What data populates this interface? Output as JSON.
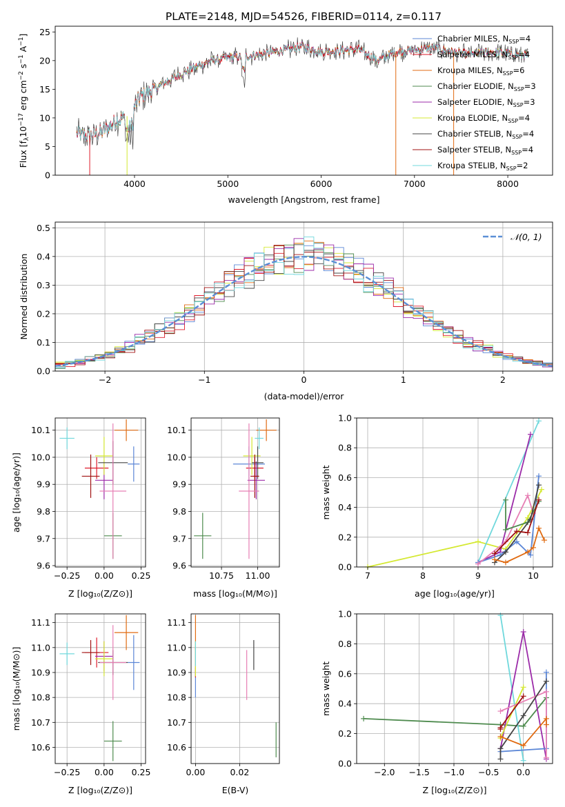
{
  "title": "PLATE=2148, MJD=54526, FIBERID=0114, z=0.117",
  "colors": {
    "chabrier_miles": "#5b86d6",
    "salpeter_miles": "#de1a2a",
    "kroupa_miles": "#e06a10",
    "chabrier_elodie": "#4d8a4d",
    "salpeter_elodie": "#9b2aa8",
    "kroupa_elodie": "#d4e830",
    "chabrier_stelib": "#444444",
    "salpeter_stelib": "#a01010",
    "kroupa_stelib": "#70d8dc",
    "gaussian": "#5b8fd6"
  },
  "chart_data": [
    {
      "id": "spectrum",
      "type": "line",
      "xlabel": "wavelength [Angstrom, rest frame]",
      "ylabel": "Flux [f",
      "xlim": [
        3150,
        8480
      ],
      "ylim": [
        0,
        26
      ],
      "xticks": [
        4000,
        5000,
        6000,
        7000,
        8000
      ],
      "yticks": [
        0,
        5,
        10,
        15,
        20,
        25
      ],
      "grid": false,
      "legend_position": "top-right",
      "continuum": {
        "x": [
          3380,
          3500,
          3650,
          3800,
          3950,
          4050,
          4200,
          4400,
          4600,
          4800,
          5000,
          5200,
          5400,
          5600,
          5800,
          6000,
          6200,
          6400,
          6600,
          6800,
          7000,
          7200,
          7400,
          7600,
          7800,
          8000,
          8220
        ],
        "y": [
          7.2,
          6.8,
          7.5,
          9.5,
          10.5,
          13.5,
          15.0,
          16.8,
          18.5,
          19.8,
          20.5,
          20.7,
          21.2,
          21.8,
          22.5,
          21.5,
          21.7,
          22.0,
          20.0,
          21.5,
          21.8,
          22.3,
          21.5,
          21.0,
          21.5,
          21.3,
          20.8
        ]
      },
      "series": [
        {
          "name": "Chabrier MILES, N",
          "nssp": "=4",
          "color": "chabrier_miles"
        },
        {
          "name": "Salpeter MILES, N",
          "nssp": "=4",
          "color": "salpeter_miles"
        },
        {
          "name": "Kroupa MILES, N",
          "nssp": "=6",
          "color": "kroupa_miles"
        },
        {
          "name": "Chabrier ELODIE, N",
          "nssp": "=3",
          "color": "chabrier_elodie"
        },
        {
          "name": "Salpeter ELODIE, N",
          "nssp": "=3",
          "color": "salpeter_elodie"
        },
        {
          "name": "Kroupa ELODIE, N",
          "nssp": "=4",
          "color": "kroupa_elodie"
        },
        {
          "name": "Chabrier STELIB, N",
          "nssp": "=4",
          "color": "chabrier_stelib"
        },
        {
          "name": "Salpeter STELIB, N",
          "nssp": "=4",
          "color": "salpeter_stelib"
        },
        {
          "name": "Kroupa STELIB, N",
          "nssp": "=2",
          "color": "kroupa_stelib"
        }
      ],
      "drops": [
        {
          "x": 3520,
          "color": "salpeter_miles"
        },
        {
          "x": 3920,
          "color": "kroupa_elodie"
        },
        {
          "x": 6800,
          "color": "kroupa_miles"
        },
        {
          "x": 7420,
          "color": "kroupa_miles"
        }
      ]
    },
    {
      "id": "residuals",
      "type": "histogram",
      "xlabel": "(data-model)/error",
      "ylabel": "Normed distribution",
      "xlim": [
        -2.5,
        2.5
      ],
      "ylim": [
        0,
        0.52
      ],
      "xticks": [
        -2,
        -1,
        0,
        1,
        2
      ],
      "yticks": [
        0.0,
        0.1,
        0.2,
        0.3,
        0.4,
        0.5
      ],
      "grid": true,
      "legend_position": "top-right",
      "legend": "𝒩(0, 1)",
      "bin_edges_from": -2.5,
      "bin_width": 0.1
    },
    {
      "id": "age_vs_Z",
      "type": "errorbar",
      "xlabel": "Z [log₁₀(Z/Z⊙)]",
      "ylabel": "age  [log₁₀(age/yr)]",
      "xlim": [
        -0.33,
        0.28
      ],
      "ylim": [
        9.595,
        10.145
      ],
      "xticks": [
        -0.25,
        0.0,
        0.25
      ],
      "yticks": [
        9.6,
        9.7,
        9.8,
        9.9,
        10.0,
        10.1
      ],
      "grid": true,
      "points": [
        {
          "x": 0.2,
          "y": 9.975,
          "xerr": 0.04,
          "yerr": 0.065,
          "color": "chabrier_miles"
        },
        {
          "x": -0.05,
          "y": 9.96,
          "xerr": 0.08,
          "yerr": 0.04,
          "color": "salpeter_miles"
        },
        {
          "x": 0.15,
          "y": 10.1,
          "xerr": 0.08,
          "yerr": 0.04,
          "color": "kroupa_miles"
        },
        {
          "x": 0.06,
          "y": 9.71,
          "xerr": 0.06,
          "yerr": 0.085,
          "color": "chabrier_elodie"
        },
        {
          "x": 0.0,
          "y": 9.915,
          "xerr": 0.06,
          "yerr": 0.07,
          "color": "salpeter_elodie"
        },
        {
          "x": 0.0,
          "y": 10.005,
          "xerr": 0.06,
          "yerr": 0.07,
          "color": "kroupa_elodie"
        },
        {
          "x": 0.06,
          "y": 9.98,
          "xerr": 0.1,
          "yerr": 0.08,
          "color": "chabrier_stelib"
        },
        {
          "x": -0.09,
          "y": 9.93,
          "xerr": 0.06,
          "yerr": 0.08,
          "color": "salpeter_stelib"
        },
        {
          "x": -0.25,
          "y": 10.07,
          "xerr": 0.05,
          "yerr": 0.04,
          "color": "kroupa_stelib"
        },
        {
          "x": 0.06,
          "y": 9.875,
          "xerr": 0.09,
          "yerr": 0.25,
          "color": "pink"
        }
      ]
    },
    {
      "id": "age_vs_mass",
      "type": "errorbar",
      "xlabel": "mass [log₁₀(M/M⊙)]",
      "ylabel": "",
      "xlim": [
        10.54,
        11.15
      ],
      "ylim": [
        9.595,
        10.145
      ],
      "xticks": [
        10.75,
        11.0
      ],
      "yticks": [
        9.6,
        9.7,
        9.8,
        9.9,
        10.0,
        10.1
      ],
      "grid": true,
      "points": [
        {
          "x": 10.94,
          "y": 9.975,
          "xerr": 0.11,
          "yerr": 0.065,
          "color": "chabrier_miles"
        },
        {
          "x": 10.98,
          "y": 9.96,
          "xerr": 0.06,
          "yerr": 0.04,
          "color": "salpeter_miles"
        },
        {
          "x": 11.06,
          "y": 10.1,
          "xerr": 0.07,
          "yerr": 0.04,
          "color": "kroupa_miles"
        },
        {
          "x": 10.62,
          "y": 9.71,
          "xerr": 0.06,
          "yerr": 0.085,
          "color": "chabrier_elodie"
        },
        {
          "x": 10.99,
          "y": 9.915,
          "xerr": 0.06,
          "yerr": 0.07,
          "color": "salpeter_elodie"
        },
        {
          "x": 10.96,
          "y": 10.005,
          "xerr": 0.06,
          "yerr": 0.07,
          "color": "kroupa_elodie"
        },
        {
          "x": 11.0,
          "y": 9.98,
          "xerr": 0.04,
          "yerr": 0.06,
          "color": "chabrier_stelib"
        },
        {
          "x": 10.98,
          "y": 9.93,
          "xerr": 0.03,
          "yerr": 0.08,
          "color": "salpeter_stelib"
        },
        {
          "x": 11.01,
          "y": 10.07,
          "xerr": 0.03,
          "yerr": 0.04,
          "color": "kroupa_stelib"
        },
        {
          "x": 10.94,
          "y": 9.875,
          "xerr": 0.07,
          "yerr": 0.25,
          "color": "pink"
        }
      ]
    },
    {
      "id": "massweight_vs_age",
      "type": "line",
      "xlabel": "age  [log₁₀(age/yr)]",
      "ylabel": "mass weight",
      "xlim": [
        6.8,
        10.35
      ],
      "ylim": [
        0,
        1
      ],
      "xticks": [
        7,
        8,
        9,
        10
      ],
      "yticks": [
        0.0,
        0.2,
        0.4,
        0.6,
        0.8,
        1.0
      ],
      "grid": true,
      "series": [
        {
          "color": "kroupa_elodie",
          "x": [
            7.0,
            9.0,
            9.5,
            9.9,
            10.15
          ],
          "y": [
            0.0,
            0.17,
            0.12,
            0.33,
            0.52
          ]
        },
        {
          "color": "kroupa_stelib",
          "x": [
            9.0,
            10.1
          ],
          "y": [
            0.03,
            0.98
          ]
        },
        {
          "color": "salpeter_elodie",
          "x": [
            9.0,
            9.4,
            9.95
          ],
          "y": [
            0.03,
            0.1,
            0.89
          ]
        },
        {
          "color": "chabrier_miles",
          "x": [
            9.0,
            9.4,
            9.7,
            9.95,
            10.1
          ],
          "y": [
            0.03,
            0.08,
            0.17,
            0.08,
            0.61
          ]
        },
        {
          "color": "pink",
          "x": [
            9.0,
            9.5,
            9.9,
            10.0
          ],
          "y": [
            0.02,
            0.17,
            0.48,
            0.36
          ]
        },
        {
          "color": "chabrier_elodie",
          "x": [
            9.5,
            9.5,
            9.9,
            10.1
          ],
          "y": [
            0.45,
            0.25,
            0.3,
            0.44
          ]
        },
        {
          "color": "chabrier_stelib",
          "x": [
            9.3,
            9.5,
            9.95,
            10.1
          ],
          "y": [
            0.03,
            0.1,
            0.32,
            0.55
          ]
        },
        {
          "color": "salpeter_stelib",
          "x": [
            9.3,
            9.7,
            9.9,
            10.1
          ],
          "y": [
            0.09,
            0.24,
            0.23,
            0.45
          ]
        },
        {
          "color": "kroupa_miles",
          "x": [
            9.3,
            9.5,
            9.9,
            10.0,
            10.1,
            10.2
          ],
          "y": [
            0.05,
            0.03,
            0.1,
            0.13,
            0.26,
            0.18
          ]
        }
      ]
    },
    {
      "id": "mass_vs_Z",
      "type": "errorbar",
      "xlabel": "Z [log₁₀(Z/Z⊙)]",
      "ylabel": "mass [log₁₀(M/M⊙)]",
      "xlim": [
        -0.33,
        0.28
      ],
      "ylim": [
        10.535,
        11.135
      ],
      "xticks": [
        -0.25,
        0.0,
        0.25
      ],
      "yticks": [
        10.6,
        10.7,
        10.8,
        10.9,
        11.0,
        11.1
      ],
      "grid": true,
      "points": [
        {
          "x": 0.2,
          "y": 10.94,
          "xerr": 0.04,
          "yerr": 0.11,
          "color": "chabrier_miles"
        },
        {
          "x": -0.05,
          "y": 10.98,
          "xerr": 0.08,
          "yerr": 0.06,
          "color": "salpeter_miles"
        },
        {
          "x": 0.15,
          "y": 11.06,
          "xerr": 0.08,
          "yerr": 0.07,
          "color": "kroupa_miles"
        },
        {
          "x": 0.06,
          "y": 10.625,
          "xerr": 0.06,
          "yerr": 0.08,
          "color": "chabrier_elodie"
        },
        {
          "x": 0.0,
          "y": 10.965,
          "xerr": 0.06,
          "yerr": 0.06,
          "color": "salpeter_elodie"
        },
        {
          "x": 0.0,
          "y": 10.955,
          "xerr": 0.06,
          "yerr": 0.07,
          "color": "kroupa_elodie"
        },
        {
          "x": 0.06,
          "y": 10.94,
          "xerr": 0.1,
          "yerr": 0.05,
          "color": "chabrier_stelib"
        },
        {
          "x": -0.09,
          "y": 10.98,
          "xerr": 0.06,
          "yerr": 0.05,
          "color": "salpeter_stelib"
        },
        {
          "x": -0.25,
          "y": 10.975,
          "xerr": 0.05,
          "yerr": 0.045,
          "color": "kroupa_stelib"
        },
        {
          "x": 0.06,
          "y": 10.94,
          "xerr": 0.09,
          "yerr": 0.15,
          "color": "pink"
        }
      ]
    },
    {
      "id": "mass_vs_ebv",
      "type": "errorbar",
      "xlabel": "E(B-V)",
      "ylabel": "",
      "xlim": [
        -0.002,
        0.038
      ],
      "ylim": [
        10.535,
        11.135
      ],
      "xticks": [
        0.0,
        0.02
      ],
      "xtick_labels": [
        "0.00",
        "0.02"
      ],
      "yticks": [
        10.6,
        10.7,
        10.8,
        10.9,
        11.0,
        11.1
      ],
      "grid": true,
      "points": [
        {
          "x": 0.0,
          "y": 10.86,
          "xerr": 0,
          "yerr": 0.06,
          "color": "chabrier_miles"
        },
        {
          "x": 0.0,
          "y": 10.94,
          "xerr": 0,
          "yerr": 0.06,
          "color": "salpeter_miles"
        },
        {
          "x": 0.0,
          "y": 11.06,
          "xerr": 0,
          "yerr": 0.07,
          "color": "kroupa_miles"
        },
        {
          "x": 0.0,
          "y": 10.955,
          "xerr": 0,
          "yerr": 0.07,
          "color": "kroupa_elodie"
        },
        {
          "x": 0.0,
          "y": 10.975,
          "xerr": 0,
          "yerr": 0.05,
          "color": "kroupa_stelib"
        },
        {
          "x": 0.0232,
          "y": 10.89,
          "xerr": 0,
          "yerr": 0.1,
          "color": "pink"
        },
        {
          "x": 0.0264,
          "y": 10.97,
          "xerr": 0,
          "yerr": 0.06,
          "color": "chabrier_stelib"
        },
        {
          "x": 0.0365,
          "y": 10.63,
          "xerr": 0,
          "yerr": 0.07,
          "color": "chabrier_elodie"
        }
      ]
    },
    {
      "id": "massweight_vs_Z",
      "type": "line",
      "xlabel": "Z [log₁₀(Z/Z⊙)]",
      "ylabel": "mass weight",
      "xlim": [
        -2.4,
        0.42
      ],
      "ylim": [
        0,
        1
      ],
      "xticks": [
        -2.0,
        -1.5,
        -1.0,
        -0.5,
        0.0
      ],
      "xtick_labels": [
        "−2.0",
        "−1.5",
        "−1.0",
        "−0.5",
        "0.0"
      ],
      "yticks": [
        0.0,
        0.2,
        0.4,
        0.6,
        0.8,
        1.0
      ],
      "grid": true,
      "series": [
        {
          "color": "chabrier_elodie",
          "x": [
            -2.3,
            -0.33,
            0.0,
            0.33
          ],
          "y": [
            0.3,
            0.26,
            0.25,
            0.44
          ]
        },
        {
          "color": "kroupa_stelib",
          "x": [
            -0.33,
            0.0
          ],
          "y": [
            0.99,
            0.02
          ]
        },
        {
          "color": "salpeter_elodie",
          "x": [
            -0.33,
            0.0,
            0.33
          ],
          "y": [
            0.1,
            0.88,
            0.03
          ]
        },
        {
          "color": "kroupa_elodie",
          "x": [
            -0.33,
            0.0
          ],
          "y": [
            0.17,
            0.51
          ]
        },
        {
          "color": "chabrier_miles",
          "x": [
            -0.33,
            0.33,
            0.33
          ],
          "y": [
            0.08,
            0.1,
            0.61
          ]
        },
        {
          "color": "pink",
          "x": [
            -0.33,
            0.33,
            0.33
          ],
          "y": [
            0.35,
            0.48,
            0.04
          ]
        },
        {
          "color": "chabrier_stelib",
          "x": [
            -0.33,
            -0.33,
            0.0,
            0.33
          ],
          "y": [
            0.03,
            0.1,
            0.32,
            0.55
          ]
        },
        {
          "color": "salpeter_stelib",
          "x": [
            -0.33,
            -0.33,
            0.0
          ],
          "y": [
            0.23,
            0.24,
            0.45
          ]
        },
        {
          "color": "kroupa_miles",
          "x": [
            -0.33,
            0.0,
            0.33,
            0.33
          ],
          "y": [
            0.18,
            0.12,
            0.3,
            0.26
          ]
        }
      ]
    }
  ]
}
